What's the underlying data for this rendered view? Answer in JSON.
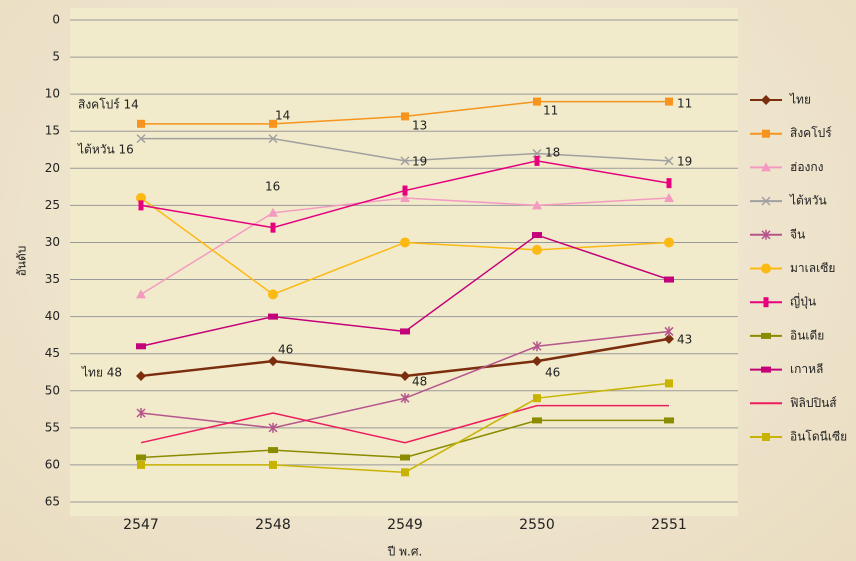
{
  "chart_data": {
    "type": "line",
    "y_label": "อันดับ",
    "x_label": "ปี พ.ศ.",
    "categories": [
      "2547",
      "2548",
      "2549",
      "2550",
      "2551"
    ],
    "ylim": [
      0,
      65
    ],
    "yticks": [
      0,
      5,
      10,
      15,
      20,
      25,
      30,
      35,
      40,
      45,
      50,
      55,
      60,
      65
    ],
    "y_inverted": true,
    "grid": true,
    "legend": "right",
    "series": [
      {
        "name": "ไทย",
        "color": "#7b2e0e",
        "marker": "diamond",
        "width": 2.5,
        "values": [
          48,
          46,
          48,
          46,
          43
        ]
      },
      {
        "name": "สิงคโปร์",
        "color": "#f7941d",
        "marker": "square",
        "width": 1.5,
        "values": [
          14,
          14,
          13,
          11,
          11
        ]
      },
      {
        "name": "ฮ่องกง",
        "color": "#f49ac1",
        "marker": "triangle",
        "width": 1.5,
        "values": [
          37,
          26,
          24,
          25,
          24
        ]
      },
      {
        "name": "ไต้หวัน",
        "color": "#a0a0a0",
        "marker": "x",
        "width": 1.5,
        "values": [
          16,
          16,
          19,
          18,
          19
        ]
      },
      {
        "name": "จีน",
        "color": "#b5558b",
        "marker": "star",
        "width": 1.5,
        "values": [
          53,
          55,
          51,
          44,
          42
        ]
      },
      {
        "name": "มาเลเซีย",
        "color": "#fdb913",
        "marker": "circle",
        "width": 1.5,
        "values": [
          24,
          37,
          30,
          31,
          30
        ]
      },
      {
        "name": "ญี่ปุ่น",
        "color": "#e6007e",
        "marker": "bar",
        "width": 1.5,
        "values": [
          25,
          28,
          23,
          19,
          22
        ]
      },
      {
        "name": "อินเดีย",
        "color": "#8b8b00",
        "marker": "dash",
        "width": 1.5,
        "values": [
          59,
          58,
          59,
          54,
          54
        ]
      },
      {
        "name": "เกาหลี",
        "color": "#c4007a",
        "marker": "dash",
        "width": 1.5,
        "values": [
          44,
          40,
          42,
          29,
          35
        ]
      },
      {
        "name": "ฟิลิปปินส์",
        "color": "#ed1c5c",
        "marker": "none",
        "width": 1.5,
        "values": [
          57,
          53,
          57,
          52,
          52
        ]
      },
      {
        "name": "อินโดนีเซีย",
        "color": "#c8b400",
        "marker": "square",
        "width": 1.5,
        "values": [
          60,
          60,
          61,
          51,
          49
        ]
      }
    ],
    "annotations": [
      "สิงคโปร์ 14",
      "14",
      "13",
      "11",
      "11",
      "ไต้หวัน 16",
      "16",
      "19",
      "18",
      "19",
      "ไทย 48",
      "46",
      "48",
      "46",
      "43"
    ]
  }
}
